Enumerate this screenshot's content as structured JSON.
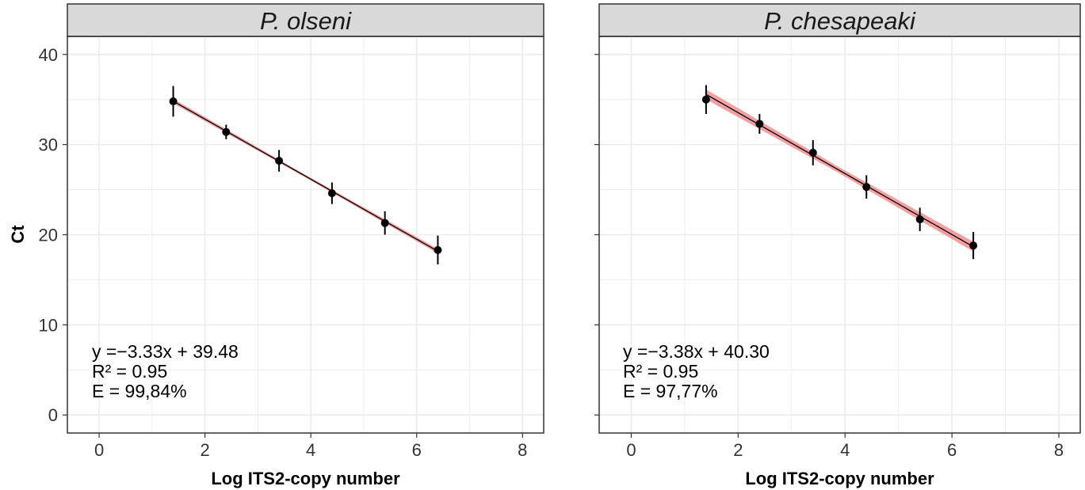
{
  "chart_data": [
    {
      "type": "scatter",
      "panel_title": "P. olseni",
      "x": [
        1.4,
        2.4,
        3.4,
        4.4,
        5.4,
        6.4
      ],
      "y": [
        34.8,
        31.4,
        28.2,
        24.6,
        21.3,
        18.3
      ],
      "y_err": [
        1.7,
        0.8,
        1.2,
        1.2,
        1.3,
        1.6
      ],
      "fit": {
        "slope": -3.33,
        "intercept": 39.48,
        "band_halfwidth": 0.25
      },
      "annotation_lines": [
        "y =−3.33x + 39.48",
        "R² = 0.95",
        "E = 99,84%"
      ],
      "xlim": [
        -0.6,
        8.4
      ],
      "ylim": [
        -2,
        42
      ],
      "xticks": [
        0,
        2,
        4,
        6,
        8
      ],
      "yticks": [
        0,
        10,
        20,
        30,
        40
      ],
      "show_y_labels": true
    },
    {
      "type": "scatter",
      "panel_title": "P. chesapeaki",
      "x": [
        1.4,
        2.4,
        3.4,
        4.4,
        5.4,
        6.4
      ],
      "y": [
        35.0,
        32.3,
        29.1,
        25.3,
        21.7,
        18.8
      ],
      "y_err": [
        1.6,
        1.1,
        1.4,
        1.3,
        1.3,
        1.5
      ],
      "fit": {
        "slope": -3.38,
        "intercept": 40.3,
        "band_halfwidth": 0.55
      },
      "annotation_lines": [
        "y =−3.38x + 40.30",
        "R² = 0.95",
        "E = 97,77%"
      ],
      "xlim": [
        -0.6,
        8.4
      ],
      "ylim": [
        -2,
        42
      ],
      "xticks": [
        0,
        2,
        4,
        6,
        8
      ],
      "yticks": [
        0,
        10,
        20,
        30,
        40
      ],
      "show_y_labels": false
    }
  ],
  "axes": {
    "xlabel": "Log ITS2-copy number",
    "ylabel": "Ct"
  },
  "colors": {
    "fit_line": "#000000",
    "band": "#f08080",
    "points": "#000000",
    "strip_fill": "#d9d9d9",
    "grid": "#ebebeb",
    "panel_border": "#333333"
  }
}
